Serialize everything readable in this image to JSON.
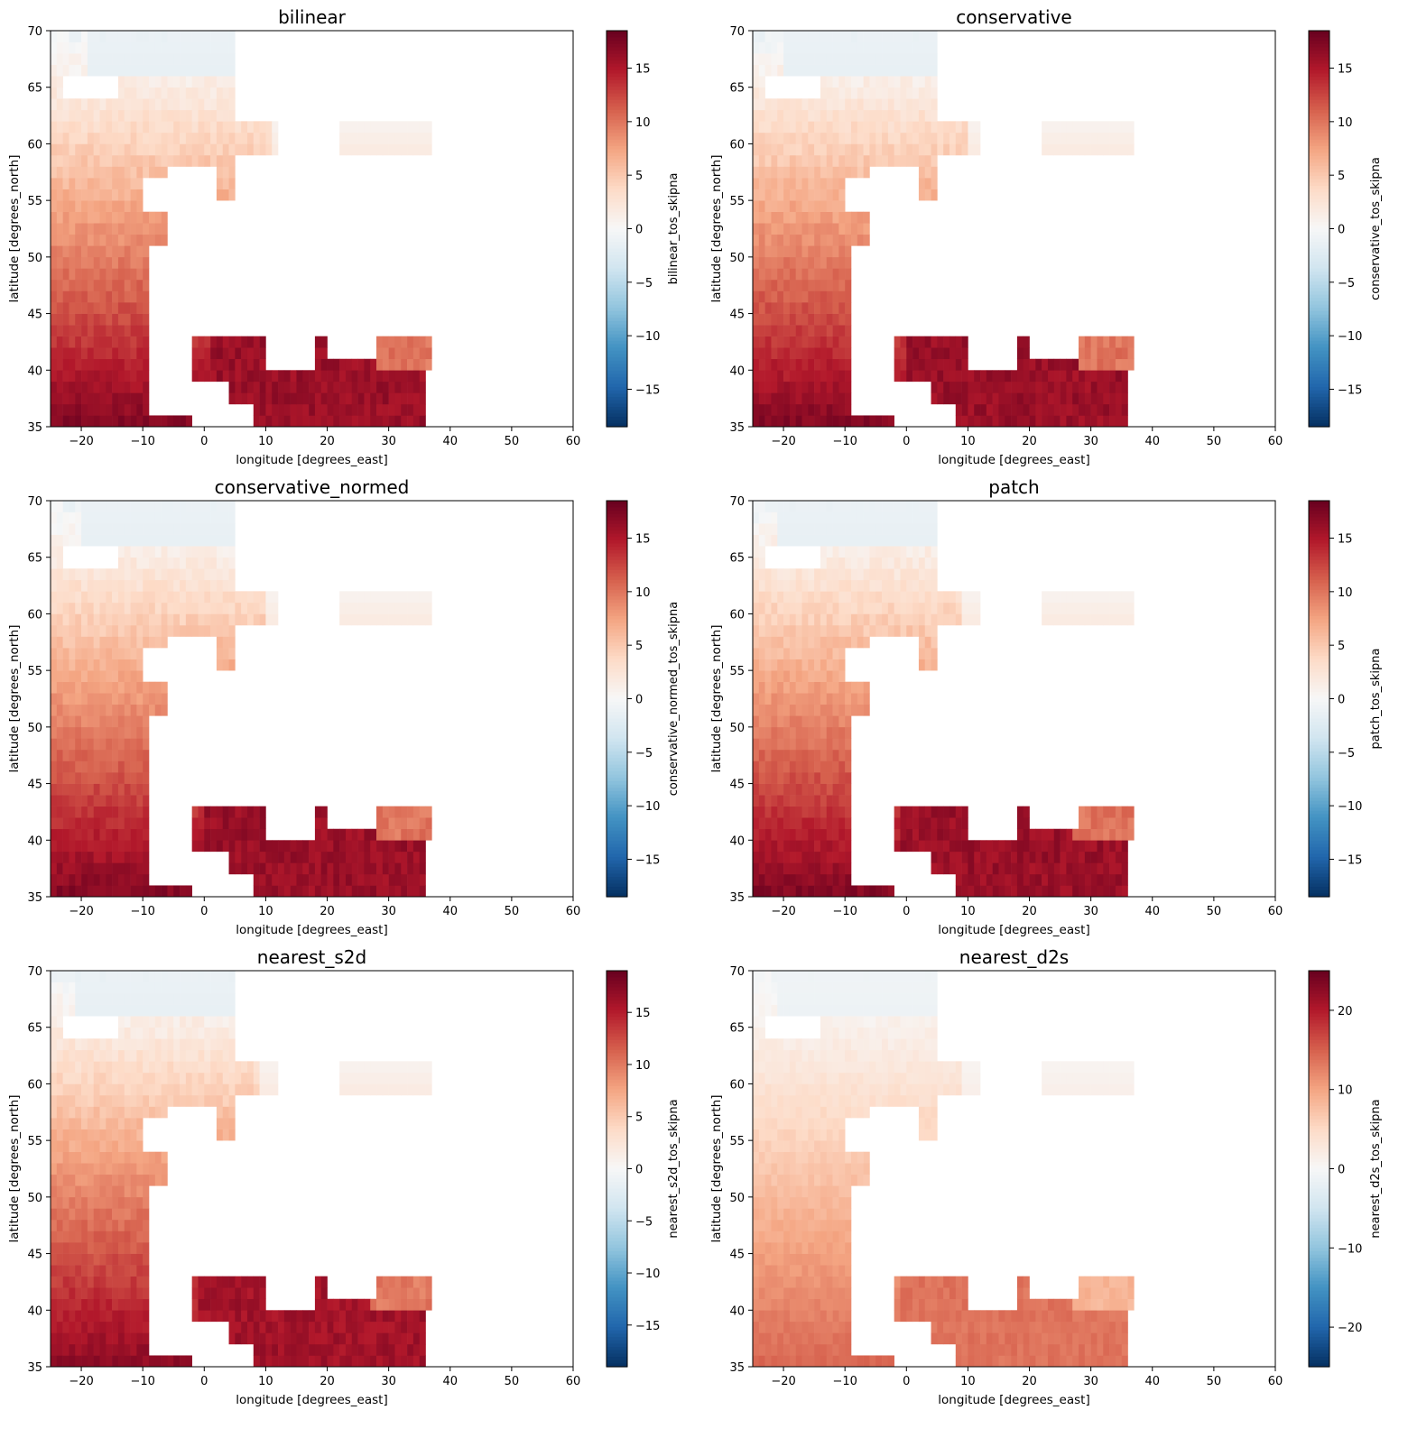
{
  "figure": {
    "x_tick_labels": [
      "−20",
      "−10",
      "0",
      "10",
      "20",
      "30",
      "40",
      "50",
      "60"
    ],
    "y_tick_labels": [
      "35",
      "40",
      "45",
      "50",
      "55",
      "60",
      "65",
      "70"
    ],
    "xlabel": "longitude [degrees_east]",
    "ylabel": "latitude [degrees_north]",
    "colormap": "RdBu_r",
    "colormap_stops": [
      "#053061",
      "#2166ac",
      "#4393c3",
      "#92c5de",
      "#d1e5f0",
      "#f7f7f7",
      "#fddbc7",
      "#f4a582",
      "#d6604d",
      "#b2182b",
      "#67001f"
    ]
  },
  "chart_data": [
    {
      "type": "heatmap",
      "title": "bilinear",
      "xlabel": "longitude [degrees_east]",
      "ylabel": "latitude [degrees_north]",
      "xlim": [
        -25,
        60
      ],
      "ylim": [
        35,
        70
      ],
      "colorbar": {
        "label": "bilinear_tos_skipna",
        "range": [
          -18.5,
          18.5
        ],
        "tick_values": [
          -15,
          -10,
          -5,
          0,
          5,
          10,
          15
        ],
        "tick_labels": [
          "−15",
          "−10",
          "−5",
          "0",
          "5",
          "10",
          "15"
        ]
      }
    },
    {
      "type": "heatmap",
      "title": "conservative",
      "xlabel": "longitude [degrees_east]",
      "ylabel": "latitude [degrees_north]",
      "xlim": [
        -25,
        60
      ],
      "ylim": [
        35,
        70
      ],
      "colorbar": {
        "label": "conservative_tos_skipna",
        "range": [
          -18.5,
          18.5
        ],
        "tick_values": [
          -15,
          -10,
          -5,
          0,
          5,
          10,
          15
        ],
        "tick_labels": [
          "−15",
          "−10",
          "−5",
          "0",
          "5",
          "10",
          "15"
        ]
      }
    },
    {
      "type": "heatmap",
      "title": "conservative_normed",
      "xlabel": "longitude [degrees_east]",
      "ylabel": "latitude [degrees_north]",
      "xlim": [
        -25,
        60
      ],
      "ylim": [
        35,
        70
      ],
      "colorbar": {
        "label": "conservative_normed_tos_skipna",
        "range": [
          -18.5,
          18.5
        ],
        "tick_values": [
          -15,
          -10,
          -5,
          0,
          5,
          10,
          15
        ],
        "tick_labels": [
          "−15",
          "−10",
          "−5",
          "0",
          "5",
          "10",
          "15"
        ]
      }
    },
    {
      "type": "heatmap",
      "title": "patch",
      "xlabel": "longitude [degrees_east]",
      "ylabel": "latitude [degrees_north]",
      "xlim": [
        -25,
        60
      ],
      "ylim": [
        35,
        70
      ],
      "colorbar": {
        "label": "patch_tos_skipna",
        "range": [
          -18.5,
          18.5
        ],
        "tick_values": [
          -15,
          -10,
          -5,
          0,
          5,
          10,
          15
        ],
        "tick_labels": [
          "−15",
          "−10",
          "−5",
          "0",
          "5",
          "10",
          "15"
        ]
      }
    },
    {
      "type": "heatmap",
      "title": "nearest_s2d",
      "xlabel": "longitude [degrees_east]",
      "ylabel": "latitude [degrees_north]",
      "xlim": [
        -25,
        60
      ],
      "ylim": [
        35,
        70
      ],
      "colorbar": {
        "label": "nearest_s2d_tos_skipna",
        "range": [
          -19,
          19
        ],
        "tick_values": [
          -15,
          -10,
          -5,
          0,
          5,
          10,
          15
        ],
        "tick_labels": [
          "−15",
          "−10",
          "−5",
          "0",
          "5",
          "10",
          "15"
        ]
      }
    },
    {
      "type": "heatmap",
      "title": "nearest_d2s",
      "xlabel": "longitude [degrees_east]",
      "ylabel": "latitude [degrees_north]",
      "xlim": [
        -25,
        60
      ],
      "ylim": [
        35,
        70
      ],
      "colorbar": {
        "label": "nearest_d2s_tos_skipna",
        "range": [
          -25,
          25
        ],
        "tick_values": [
          -20,
          -10,
          0,
          10,
          20
        ],
        "tick_labels": [
          "−20",
          "−10",
          "0",
          "10",
          "20"
        ]
      }
    }
  ]
}
